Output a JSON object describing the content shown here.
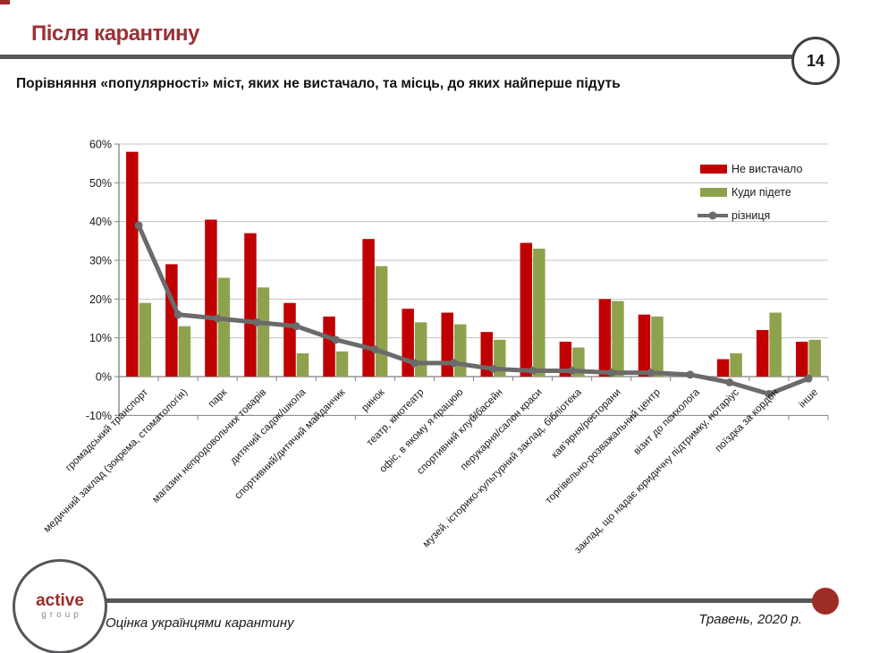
{
  "header": {
    "title": "Після карантину",
    "page_number": "14",
    "subtitle": "Порівняння «популярності» міст, яких не вистачало, та місць, до яких найперше підуть",
    "accent_color": "#9B3137",
    "rule_color": "#55565A"
  },
  "chart_data": {
    "type": "bar",
    "title": "",
    "xlabel": "",
    "ylabel": "",
    "ylim": [
      -10,
      60
    ],
    "ytick_step": 10,
    "ytick_format": "percent",
    "grid": "horizontal",
    "legend_position": "top-right",
    "categories": [
      "громадський транспорт",
      "медичний заклад (зокрема, стоматологія)",
      "парк",
      "магазин непродовольчих товарів",
      "дитячий садок/школа",
      "спортивний/дитячий майданчик",
      "ринок",
      "театр, кінотеатр",
      "офіс, в якому я працюю",
      "спортивний клуб/басейн",
      "перукарня/салон краси",
      "музей, історико-культурний заклад, бібліотека",
      "кав’ярня/ресторани",
      "торгівельно-розважальний центр",
      "візит до психолога",
      "заклад, що надає юридичну підтримку, нотаріус",
      "поїздка за кордон",
      "інше"
    ],
    "series": [
      {
        "name": "Не вистачало",
        "kind": "bar",
        "color": "#C00000",
        "values": [
          58,
          29,
          40.5,
          37,
          19,
          15.5,
          35.5,
          17.5,
          16.5,
          11.5,
          34.5,
          9,
          20,
          16,
          0,
          4.5,
          12,
          9
        ]
      },
      {
        "name": "Куди підете",
        "kind": "bar",
        "color": "#8EA24D",
        "values": [
          19,
          13,
          25.5,
          23,
          6,
          6.5,
          28.5,
          14,
          13.5,
          9.5,
          33,
          7.5,
          19.5,
          15.5,
          0,
          6,
          16.5,
          9.5
        ]
      },
      {
        "name": "різниця",
        "kind": "line",
        "color": "#6B6B6B",
        "values": [
          39,
          16,
          15,
          14,
          13,
          9.5,
          7,
          3.5,
          3.5,
          2,
          1.5,
          1.5,
          1,
          1,
          0.5,
          -1.5,
          -4.5,
          -0.5
        ]
      }
    ]
  },
  "footer": {
    "logo_line1": "active",
    "logo_line2": "group",
    "caption_left": "Оцінка українцями карантину",
    "caption_right": "Травень, 2020 р.",
    "dot_color": "#9E2D26"
  }
}
